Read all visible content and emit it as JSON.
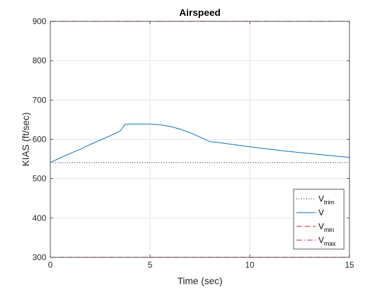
{
  "chart_data": {
    "type": "line",
    "title": "Airspeed",
    "xlabel": "Time (sec)",
    "ylabel": "KIAS (ft/sec)",
    "xlim": [
      0,
      15
    ],
    "ylim": [
      300,
      900
    ],
    "xticks": [
      0,
      5,
      10,
      15
    ],
    "yticks": [
      300,
      400,
      500,
      600,
      700,
      800,
      900
    ],
    "grid": true,
    "legend_position": "bottom-right",
    "series": [
      {
        "name": "V",
        "name_sub": "trim",
        "color": "#000000",
        "style": "dotted",
        "x": [
          0,
          15
        ],
        "y": [
          541,
          541
        ]
      },
      {
        "name": "V",
        "name_sub": "",
        "color": "#0072BD",
        "style": "solid",
        "x": [
          0,
          0.5,
          1,
          1.5,
          2,
          2.5,
          3,
          3.5,
          3.75,
          4,
          4.5,
          5,
          5.5,
          6,
          6.5,
          7,
          7.5,
          8,
          8.25,
          9,
          10,
          11,
          12,
          13,
          14,
          15
        ],
        "y": [
          541,
          553,
          564,
          575,
          587,
          598,
          609,
          621,
          638,
          639,
          639,
          639,
          637,
          633,
          626,
          617,
          606,
          594,
          593,
          588,
          581,
          575,
          569,
          564,
          559,
          554
        ]
      },
      {
        "name": "V",
        "name_sub": "min",
        "color": "#D62728",
        "style": "dashed",
        "x": [
          0,
          15
        ],
        "y": [
          300,
          300
        ]
      },
      {
        "name": "V",
        "name_sub": "max",
        "color": "#D62728",
        "style": "dashdot",
        "x": [
          0,
          15
        ],
        "y": [
          900,
          900
        ]
      }
    ]
  }
}
